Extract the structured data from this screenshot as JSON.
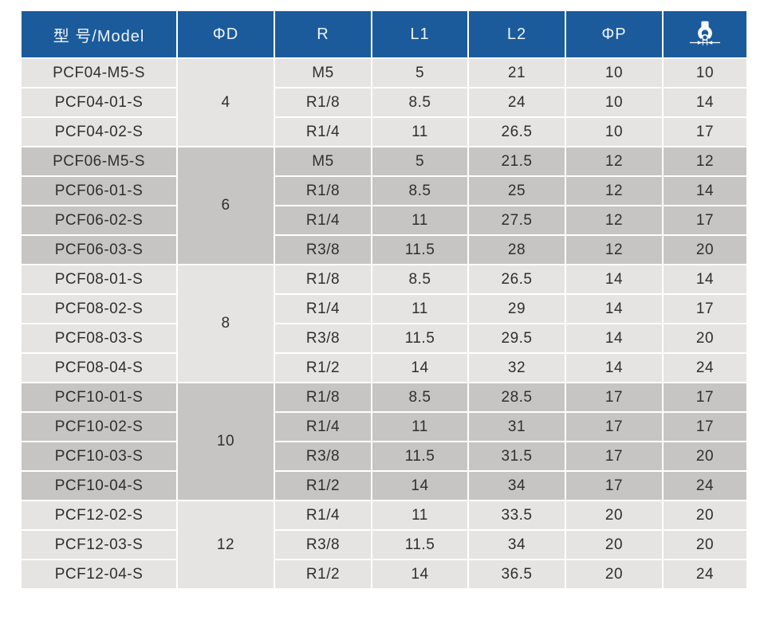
{
  "colors": {
    "header_bg": "#1b5b9b",
    "header_text": "#eef4fb",
    "group_light": "#e5e4e2",
    "group_dark": "#c6c5c3",
    "grid_line": "#ffffff",
    "body_text": "#2f2f2f"
  },
  "table": {
    "columns": [
      {
        "key": "model",
        "label": "型 号/Model"
      },
      {
        "key": "phi_d",
        "label": "ΦD"
      },
      {
        "key": "r",
        "label": "R"
      },
      {
        "key": "l1",
        "label": "L1"
      },
      {
        "key": "l2",
        "label": "L2"
      },
      {
        "key": "phi_p",
        "label": "ΦP"
      },
      {
        "key": "wrench",
        "label": "",
        "icon": "wrench-size-icon"
      }
    ],
    "groups": [
      {
        "phi_d": "4",
        "rows": [
          {
            "model": "PCF04-M5-S",
            "r": "M5",
            "l1": "5",
            "l2": "21",
            "phi_p": "10",
            "wrench": "10"
          },
          {
            "model": "PCF04-01-S",
            "r": "R1/8",
            "l1": "8.5",
            "l2": "24",
            "phi_p": "10",
            "wrench": "14"
          },
          {
            "model": "PCF04-02-S",
            "r": "R1/4",
            "l1": "11",
            "l2": "26.5",
            "phi_p": "10",
            "wrench": "17"
          }
        ]
      },
      {
        "phi_d": "6",
        "rows": [
          {
            "model": "PCF06-M5-S",
            "r": "M5",
            "l1": "5",
            "l2": "21.5",
            "phi_p": "12",
            "wrench": "12"
          },
          {
            "model": "PCF06-01-S",
            "r": "R1/8",
            "l1": "8.5",
            "l2": "25",
            "phi_p": "12",
            "wrench": "14"
          },
          {
            "model": "PCF06-02-S",
            "r": "R1/4",
            "l1": "11",
            "l2": "27.5",
            "phi_p": "12",
            "wrench": "17"
          },
          {
            "model": "PCF06-03-S",
            "r": "R3/8",
            "l1": "11.5",
            "l2": "28",
            "phi_p": "12",
            "wrench": "20"
          }
        ]
      },
      {
        "phi_d": "8",
        "rows": [
          {
            "model": "PCF08-01-S",
            "r": "R1/8",
            "l1": "8.5",
            "l2": "26.5",
            "phi_p": "14",
            "wrench": "14"
          },
          {
            "model": "PCF08-02-S",
            "r": "R1/4",
            "l1": "11",
            "l2": "29",
            "phi_p": "14",
            "wrench": "17"
          },
          {
            "model": "PCF08-03-S",
            "r": "R3/8",
            "l1": "11.5",
            "l2": "29.5",
            "phi_p": "14",
            "wrench": "20"
          },
          {
            "model": "PCF08-04-S",
            "r": "R1/2",
            "l1": "14",
            "l2": "32",
            "phi_p": "14",
            "wrench": "24"
          }
        ]
      },
      {
        "phi_d": "10",
        "rows": [
          {
            "model": "PCF10-01-S",
            "r": "R1/8",
            "l1": "8.5",
            "l2": "28.5",
            "phi_p": "17",
            "wrench": "17"
          },
          {
            "model": "PCF10-02-S",
            "r": "R1/4",
            "l1": "11",
            "l2": "31",
            "phi_p": "17",
            "wrench": "17"
          },
          {
            "model": "PCF10-03-S",
            "r": "R3/8",
            "l1": "11.5",
            "l2": "31.5",
            "phi_p": "17",
            "wrench": "20"
          },
          {
            "model": "PCF10-04-S",
            "r": "R1/2",
            "l1": "14",
            "l2": "34",
            "phi_p": "17",
            "wrench": "24"
          }
        ]
      },
      {
        "phi_d": "12",
        "rows": [
          {
            "model": "PCF12-02-S",
            "r": "R1/4",
            "l1": "11",
            "l2": "33.5",
            "phi_p": "20",
            "wrench": "20"
          },
          {
            "model": "PCF12-03-S",
            "r": "R3/8",
            "l1": "11.5",
            "l2": "34",
            "phi_p": "20",
            "wrench": "20"
          },
          {
            "model": "PCF12-04-S",
            "r": "R1/2",
            "l1": "14",
            "l2": "36.5",
            "phi_p": "20",
            "wrench": "24"
          }
        ]
      }
    ]
  }
}
